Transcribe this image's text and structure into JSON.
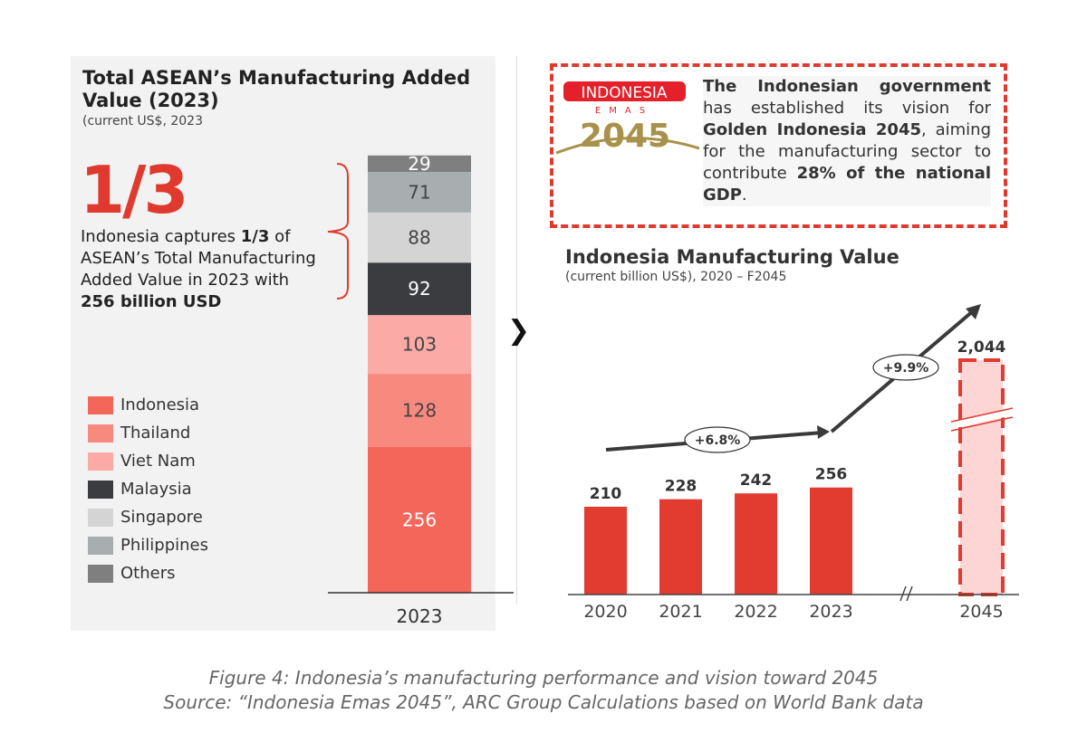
{
  "left": {
    "title": "Total ASEAN’s Manufacturing Added Value (2023)",
    "subtitle": "(current US$, 2023",
    "highlight": "1/3",
    "desc_parts": [
      "Indonesia captures ",
      "1/3",
      " of ASEAN’s Total Manufacturing Added Value in 2023 with ",
      "256 billion USD"
    ]
  },
  "logo": {
    "line1": "INDONESIA",
    "line2": "EMAS",
    "line3": "2045"
  },
  "vision": {
    "parts": [
      "The Indonesian government",
      " has established its vision for ",
      "Golden Indonesia 2045",
      ", aiming for the manufacturing sector to contribute ",
      "28% of the national GDP",
      "."
    ]
  },
  "right": {
    "title": "Indonesia Manufacturing Value",
    "subtitle": "(current billion US$), 2020 – F2045"
  },
  "caption": {
    "line1": "Figure 4: Indonesia’s manufacturing performance and vision toward 2045",
    "line2": "Source:  “Indonesia Emas 2045”, ARC Group Calculations based on World Bank data"
  },
  "chart_data": [
    {
      "type": "bar",
      "stacked": true,
      "title": "Total ASEAN’s Manufacturing Added Value (2023)",
      "categories": [
        "2023"
      ],
      "series": [
        {
          "name": "Indonesia",
          "values": [
            256
          ],
          "color": "#f4655a"
        },
        {
          "name": "Thailand",
          "values": [
            128
          ],
          "color": "#f8897f"
        },
        {
          "name": "Viet Nam",
          "values": [
            103
          ],
          "color": "#fbaaa5"
        },
        {
          "name": "Malaysia",
          "values": [
            92
          ],
          "color": "#3a3c40"
        },
        {
          "name": "Singapore",
          "values": [
            88
          ],
          "color": "#d4d4d4"
        },
        {
          "name": "Philippines",
          "values": [
            71
          ],
          "color": "#a8adb0"
        },
        {
          "name": "Others",
          "values": [
            29
          ],
          "color": "#7f7f7f"
        }
      ],
      "legend": "left"
    },
    {
      "type": "bar",
      "title": "Indonesia Manufacturing Value",
      "categories": [
        "2020",
        "2021",
        "2022",
        "2023",
        "2045"
      ],
      "values": [
        210,
        228,
        242,
        256,
        2044
      ],
      "labels": [
        "210",
        "228",
        "242",
        "256",
        "2,044"
      ],
      "forecast": [
        "2045"
      ],
      "axis_break": true,
      "color": "#e23b30",
      "forecast_color": "#fdd5d5",
      "annotations": [
        "+6.8%",
        "+9.9%"
      ]
    }
  ]
}
